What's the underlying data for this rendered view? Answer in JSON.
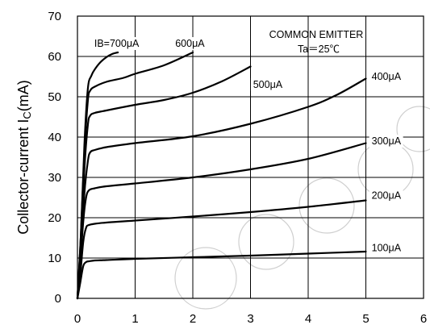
{
  "chart_data": {
    "type": "line",
    "title": "",
    "xlabel": "",
    "ylabel": "Collector-current I_C(mA)",
    "ylabel_parts": {
      "main": "Collector-current I",
      "sub": "C",
      "unit": "(mA)"
    },
    "xlim": [
      0,
      6
    ],
    "ylim": [
      0,
      70
    ],
    "x_ticks": [
      "0",
      "1",
      "2",
      "3",
      "4",
      "5",
      "6"
    ],
    "y_ticks": [
      "0",
      "10",
      "20",
      "30",
      "40",
      "50",
      "60",
      "70"
    ],
    "grid": true,
    "annotations": [
      "COMMON EMITTER",
      "Ta＝25℃"
    ],
    "series": [
      {
        "name": "100μA",
        "label": "100μA",
        "x": [
          0,
          0.05,
          0.1,
          0.15,
          0.2,
          0.3,
          0.5,
          1,
          2,
          3,
          4,
          5
        ],
        "y": [
          0,
          4,
          8,
          9,
          9.2,
          9.4,
          9.5,
          9.8,
          10.2,
          10.6,
          11.1,
          11.6
        ]
      },
      {
        "name": "200μA",
        "label": "200μA",
        "x": [
          0,
          0.05,
          0.1,
          0.15,
          0.2,
          0.3,
          0.5,
          1,
          2,
          3,
          4,
          5
        ],
        "y": [
          0,
          6,
          14,
          17.5,
          18.2,
          18.5,
          18.8,
          19.3,
          20.3,
          21.4,
          22.7,
          24.3
        ]
      },
      {
        "name": "300μA",
        "label": "300μA",
        "x": [
          0,
          0.05,
          0.1,
          0.15,
          0.2,
          0.3,
          0.5,
          1,
          2,
          3,
          4,
          5
        ],
        "y": [
          0,
          9,
          19,
          25,
          26.8,
          27.3,
          27.8,
          28.5,
          30,
          32,
          34.6,
          38.5
        ]
      },
      {
        "name": "400μA",
        "label": "400μA",
        "x": [
          0,
          0.06,
          0.12,
          0.18,
          0.22,
          0.3,
          0.5,
          1,
          2,
          3,
          4,
          4.5,
          5
        ],
        "y": [
          0,
          12,
          26,
          34,
          36.2,
          36.8,
          37.5,
          38.5,
          40.2,
          43.3,
          47.5,
          50.5,
          54.5
        ]
      },
      {
        "name": "500μA",
        "label": "500μA",
        "x": [
          0,
          0.06,
          0.12,
          0.18,
          0.22,
          0.3,
          0.5,
          1,
          1.5,
          2,
          2.5,
          3
        ],
        "y": [
          0,
          14,
          32,
          43,
          45.3,
          46,
          46.6,
          48,
          49.2,
          51,
          53.8,
          57.5
        ]
      },
      {
        "name": "600μA",
        "label": "600μA",
        "x": [
          0,
          0.06,
          0.12,
          0.18,
          0.22,
          0.3,
          0.5,
          0.8,
          1,
          1.5,
          2
        ],
        "y": [
          0,
          16,
          36,
          49,
          51.5,
          52.5,
          53.7,
          54.7,
          55.7,
          57.8,
          61
        ]
      },
      {
        "name": "IB=700μA",
        "label": "IB=700μA",
        "x": [
          0,
          0.06,
          0.12,
          0.18,
          0.24,
          0.3,
          0.4,
          0.5,
          0.6,
          0.7
        ],
        "y": [
          0,
          16,
          38,
          52,
          55.2,
          56.8,
          58.6,
          59.8,
          60.6,
          61
        ]
      }
    ]
  }
}
